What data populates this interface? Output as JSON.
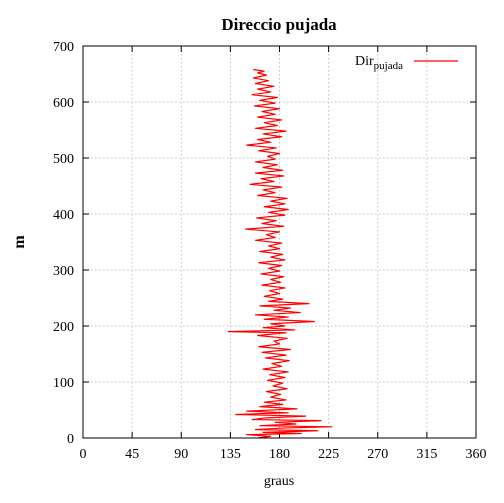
{
  "chart_data": {
    "type": "line",
    "title": "Direccio pujada",
    "xlabel": "graus",
    "ylabel": "m",
    "xlim": [
      0,
      360
    ],
    "ylim": [
      0,
      700
    ],
    "xticks": [
      0,
      45,
      90,
      135,
      180,
      225,
      270,
      315,
      360
    ],
    "yticks": [
      0,
      100,
      200,
      300,
      400,
      500,
      600,
      700
    ],
    "grid": true,
    "legend_position": "top-right",
    "series": [
      {
        "name_main": "Dir",
        "name_sub": "pujada",
        "color": "#ff0000",
        "points": [
          [
            160,
            0
          ],
          [
            172,
            3
          ],
          [
            150,
            6
          ],
          [
            200,
            8
          ],
          [
            165,
            10
          ],
          [
            215,
            13
          ],
          [
            158,
            15
          ],
          [
            185,
            18
          ],
          [
            228,
            20
          ],
          [
            162,
            22
          ],
          [
            195,
            25
          ],
          [
            176,
            28
          ],
          [
            218,
            31
          ],
          [
            155,
            33
          ],
          [
            168,
            36
          ],
          [
            204,
            39
          ],
          [
            140,
            42
          ],
          [
            188,
            45
          ],
          [
            150,
            48
          ],
          [
            196,
            52
          ],
          [
            162,
            56
          ],
          [
            183,
            60
          ],
          [
            166,
            64
          ],
          [
            186,
            68
          ],
          [
            172,
            73
          ],
          [
            181,
            78
          ],
          [
            168,
            83
          ],
          [
            187,
            88
          ],
          [
            174,
            93
          ],
          [
            183,
            98
          ],
          [
            169,
            103
          ],
          [
            185,
            108
          ],
          [
            171,
            113
          ],
          [
            188,
            118
          ],
          [
            165,
            123
          ],
          [
            182,
            128
          ],
          [
            173,
            133
          ],
          [
            189,
            138
          ],
          [
            167,
            143
          ],
          [
            186,
            148
          ],
          [
            164,
            153
          ],
          [
            190,
            158
          ],
          [
            161,
            163
          ],
          [
            180,
            168
          ],
          [
            175,
            173
          ],
          [
            187,
            178
          ],
          [
            160,
            183
          ],
          [
            186,
            188
          ],
          [
            133,
            190
          ],
          [
            194,
            193
          ],
          [
            165,
            197
          ],
          [
            185,
            200
          ],
          [
            172,
            204
          ],
          [
            212,
            208
          ],
          [
            166,
            212
          ],
          [
            188,
            216
          ],
          [
            158,
            220
          ],
          [
            199,
            224
          ],
          [
            175,
            228
          ],
          [
            190,
            232
          ],
          [
            162,
            236
          ],
          [
            207,
            240
          ],
          [
            170,
            244
          ],
          [
            183,
            248
          ],
          [
            166,
            253
          ],
          [
            180,
            258
          ],
          [
            171,
            263
          ],
          [
            185,
            268
          ],
          [
            164,
            273
          ],
          [
            181,
            278
          ],
          [
            172,
            283
          ],
          [
            184,
            288
          ],
          [
            163,
            293
          ],
          [
            180,
            298
          ],
          [
            170,
            303
          ],
          [
            182,
            308
          ],
          [
            161,
            313
          ],
          [
            185,
            318
          ],
          [
            172,
            323
          ],
          [
            183,
            328
          ],
          [
            162,
            333
          ],
          [
            180,
            338
          ],
          [
            170,
            343
          ],
          [
            182,
            348
          ],
          [
            158,
            353
          ],
          [
            176,
            358
          ],
          [
            168,
            363
          ],
          [
            180,
            368
          ],
          [
            149,
            373
          ],
          [
            184,
            378
          ],
          [
            164,
            383
          ],
          [
            177,
            388
          ],
          [
            159,
            393
          ],
          [
            185,
            398
          ],
          [
            170,
            403
          ],
          [
            188,
            408
          ],
          [
            166,
            413
          ],
          [
            185,
            418
          ],
          [
            172,
            423
          ],
          [
            187,
            428
          ],
          [
            160,
            433
          ],
          [
            176,
            438
          ],
          [
            165,
            443
          ],
          [
            182,
            448
          ],
          [
            153,
            453
          ],
          [
            175,
            458
          ],
          [
            163,
            463
          ],
          [
            184,
            468
          ],
          [
            158,
            473
          ],
          [
            183,
            478
          ],
          [
            165,
            483
          ],
          [
            178,
            488
          ],
          [
            158,
            493
          ],
          [
            176,
            498
          ],
          [
            169,
            503
          ],
          [
            180,
            508
          ],
          [
            161,
            513
          ],
          [
            177,
            518
          ],
          [
            150,
            523
          ],
          [
            172,
            528
          ],
          [
            160,
            533
          ],
          [
            182,
            538
          ],
          [
            165,
            543
          ],
          [
            186,
            548
          ],
          [
            158,
            553
          ],
          [
            178,
            558
          ],
          [
            166,
            563
          ],
          [
            182,
            568
          ],
          [
            160,
            573
          ],
          [
            176,
            578
          ],
          [
            164,
            583
          ],
          [
            180,
            588
          ],
          [
            157,
            593
          ],
          [
            176,
            598
          ],
          [
            162,
            603
          ],
          [
            178,
            608
          ],
          [
            155,
            613
          ],
          [
            172,
            618
          ],
          [
            160,
            623
          ],
          [
            175,
            628
          ],
          [
            158,
            633
          ],
          [
            170,
            638
          ],
          [
            156,
            643
          ],
          [
            168,
            648
          ],
          [
            160,
            652
          ],
          [
            166,
            655
          ],
          [
            156,
            658
          ]
        ]
      }
    ]
  }
}
